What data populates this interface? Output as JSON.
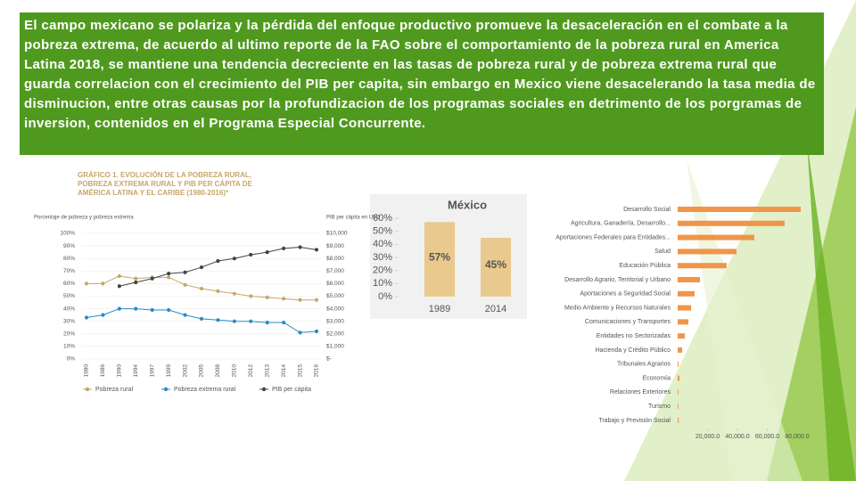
{
  "text": "El campo mexicano se polariza y la pérdida del enfoque productivo promueve la desaceleración en el combate a la pobreza extrema, de acuerdo al ultimo reporte de la FAO sobre el comportamiento de la pobreza rural en America Latina 2018, se mantiene una tendencia decreciente en las tasas de pobreza rural y de pobreza extrema rural que guarda correlacion con el crecimiento del PIB per capita, sin embargo en Mexico viene desacelerando la tasa media de disminucion, entre otras causas por la profundizacion de los programas sociales en detrimento de los porgramas de inversion, contenidos en el Programa Especial Concurrente.",
  "chart_data": [
    {
      "type": "line",
      "title": "Gráfico 1. Evolución de la pobreza rural, pobreza extrema rural y PIB per cápita de América Latina y el Caribe (1980-2016)*",
      "y_label": "Porcentaje de pobreza y pobreza extrema",
      "y2_label": "PIB per cápita en USD",
      "categories": [
        "1980",
        "1986",
        "1990",
        "1994",
        "1997",
        "1999",
        "2002",
        "2005",
        "2008",
        "2010",
        "2012",
        "2013",
        "2014",
        "2015",
        "2016"
      ],
      "series": [
        {
          "name": "Pobreza rural",
          "color": "#c9a56a",
          "values": [
            60,
            60,
            66,
            64,
            65,
            65,
            59,
            56,
            54,
            52,
            50,
            49,
            48,
            47,
            47
          ]
        },
        {
          "name": "Pobreza extrema rural",
          "color": "#2a8cc4",
          "values": [
            33,
            35,
            40,
            40,
            39,
            39,
            35,
            32,
            31,
            30,
            30,
            29,
            29,
            21,
            22
          ]
        },
        {
          "name": "PIB per cápita",
          "color": "#444444",
          "axis": "y2",
          "values": [
            null,
            null,
            5800,
            6100,
            6400,
            6800,
            6900,
            7300,
            7800,
            8000,
            8300,
            8500,
            8800,
            8900,
            8700
          ]
        }
      ],
      "ylim": [
        0,
        100
      ],
      "yticks": [
        {
          "value": 0,
          "label": "0%"
        },
        {
          "value": 10,
          "label": "10%"
        },
        {
          "value": 20,
          "label": "20%"
        },
        {
          "value": 30,
          "label": "30%"
        },
        {
          "value": 40,
          "label": "40%"
        },
        {
          "value": 50,
          "label": "50%"
        },
        {
          "value": 60,
          "label": "60%"
        },
        {
          "value": 70,
          "label": "70%"
        },
        {
          "value": 80,
          "label": "80%"
        },
        {
          "value": 90,
          "label": "90%"
        },
        {
          "value": 100,
          "label": "100%"
        }
      ],
      "y2lim": [
        0,
        10000
      ],
      "y2ticks": [
        {
          "value": 0,
          "label": "$-"
        },
        {
          "value": 1000,
          "label": "$1,000"
        },
        {
          "value": 2000,
          "label": "$2,000"
        },
        {
          "value": 3000,
          "label": "$3,000"
        },
        {
          "value": 4000,
          "label": "$4,000"
        },
        {
          "value": 5000,
          "label": "$5,000"
        },
        {
          "value": 6000,
          "label": "$6,000"
        },
        {
          "value": 7000,
          "label": "$7,000"
        },
        {
          "value": 8000,
          "label": "$8,000"
        },
        {
          "value": 9000,
          "label": "$9,000"
        },
        {
          "value": 10000,
          "label": "$10,000"
        }
      ]
    },
    {
      "type": "bar",
      "title": "México",
      "categories": [
        "1989",
        "2014"
      ],
      "values": [
        57,
        45
      ],
      "value_labels": [
        "57%",
        "45%"
      ],
      "color": "#e9c98d",
      "ylim": [
        0,
        60
      ],
      "yticks": [
        {
          "value": 0,
          "label": "0%"
        },
        {
          "value": 10,
          "label": "10%"
        },
        {
          "value": 20,
          "label": "20%"
        },
        {
          "value": 30,
          "label": "30%"
        },
        {
          "value": 40,
          "label": "40%"
        },
        {
          "value": 50,
          "label": "50%"
        },
        {
          "value": 60,
          "label": "60%"
        }
      ]
    },
    {
      "type": "hbar",
      "categories": [
        "Desarrollo Social",
        "Agricultura, Ganadería, Desarrollo...",
        "Aportaciones Federales para Entidades...",
        "Salud",
        "Educación Pública",
        "Desarrollo Agrario, Territorial y Urbano",
        "Aportaciones a Seguridad Social",
        "Medio Ambiente y Recursos Naturales",
        "Comunicaciones y Transportes",
        "Entidades no Sectorizadas",
        "Hacienda y Crédito Público",
        "Tribunales Agrarios",
        "Economía",
        "Relaciones Exteriores",
        "Turismo",
        "Trabajo y Previsión Social"
      ],
      "values": [
        82400,
        71600,
        51300,
        39400,
        32800,
        14900,
        11300,
        9000,
        7200,
        4800,
        3000,
        600,
        1200,
        600,
        500,
        700
      ],
      "color": "#f0954a",
      "xlim": [
        0,
        85000
      ],
      "xticks": [
        {
          "value": 20000,
          "label": "20,000.0"
        },
        {
          "value": 40000,
          "label": "40,000.0"
        },
        {
          "value": 60000,
          "label": "60,000.0"
        },
        {
          "value": 80000,
          "label": "80,000.0"
        }
      ]
    }
  ]
}
